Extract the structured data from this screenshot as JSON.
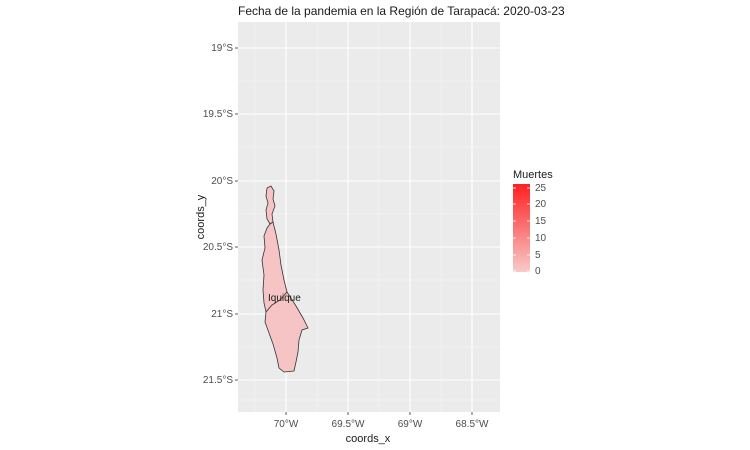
{
  "title": "Fecha de la pandemia en la Región de Tarapacá: 2020-03-23",
  "axes": {
    "x_label": "coords_x",
    "y_label": "coords_y",
    "x_ticks": [
      "70°W",
      "69.5°W",
      "69°W",
      "68.5°W"
    ],
    "y_ticks": [
      "19°S",
      "19.5°S",
      "20°S",
      "20.5°S",
      "21°S",
      "21.5°S"
    ]
  },
  "legend": {
    "title": "Muertes",
    "labels": [
      "25",
      "20",
      "15",
      "10",
      "5",
      "0"
    ],
    "low_color": "#f7caca",
    "high_color": "#ff2020"
  },
  "map": {
    "region_label": "Iquique",
    "region_fill": "#f6c4c4",
    "panel_background": "#ebebeb",
    "grid_color": "#ffffff",
    "grid": true
  }
}
